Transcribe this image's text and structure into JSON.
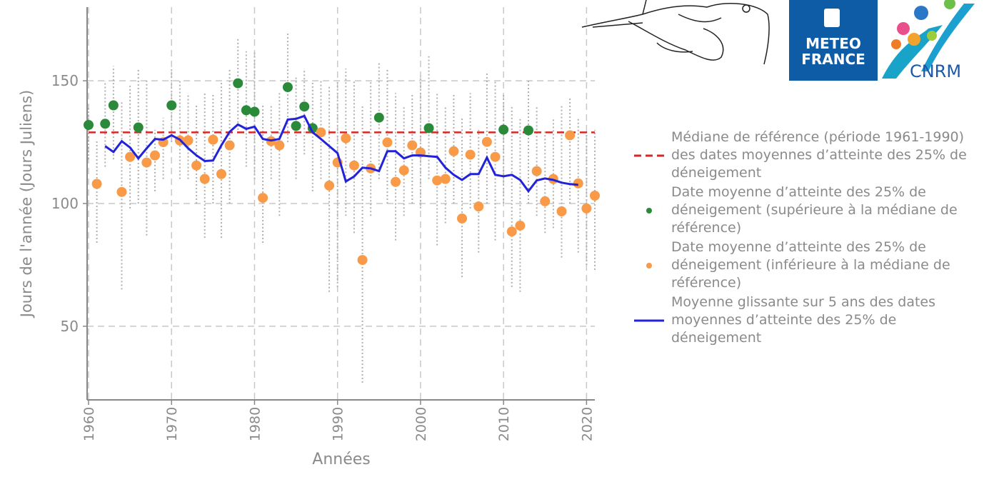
{
  "chart_data": {
    "type": "scatter",
    "xlabel": "Années",
    "ylabel": "Jours de l'année (Jours Juliens)",
    "xlim": [
      1960,
      2021
    ],
    "ylim": [
      20,
      180
    ],
    "xticks": [
      1960,
      1970,
      1980,
      1990,
      2000,
      2010,
      2020
    ],
    "yticks": [
      50,
      100,
      150
    ],
    "grid": true,
    "x": [
      1960,
      1961,
      1962,
      1963,
      1964,
      1965,
      1966,
      1967,
      1968,
      1969,
      1970,
      1971,
      1972,
      1973,
      1974,
      1975,
      1976,
      1977,
      1978,
      1979,
      1980,
      1981,
      1982,
      1983,
      1984,
      1985,
      1986,
      1987,
      1988,
      1989,
      1990,
      1991,
      1992,
      1993,
      1994,
      1995,
      1996,
      1997,
      1998,
      1999,
      2000,
      2001,
      2002,
      2003,
      2004,
      2005,
      2006,
      2007,
      2008,
      2009,
      2010,
      2011,
      2012,
      2013,
      2014,
      2015,
      2016,
      2017,
      2018,
      2019,
      2020,
      2021
    ],
    "reference_line": {
      "name": "Médiane de référence (période 1961-1990) des dates moyennes d’atteinte des 25% de déneigement",
      "color": "#d62728",
      "value": 129
    },
    "ranges": {
      "color": "#b0b0b0",
      "low": [
        118,
        84,
        115,
        118,
        65,
        98,
        100,
        87,
        105,
        110,
        125,
        110,
        110,
        100,
        86,
        100,
        86,
        100,
        130,
        115,
        110,
        84,
        110,
        95,
        125,
        110,
        120,
        105,
        110,
        64,
        66,
        95,
        88,
        27,
        95,
        110,
        100,
        85,
        95,
        100,
        98,
        110,
        83,
        92,
        100,
        70,
        98,
        80,
        100,
        85,
        100,
        66,
        64,
        100,
        95,
        88,
        90,
        78,
        100,
        80,
        75,
        73
      ],
      "high": [
        140,
        126,
        150,
        156,
        142,
        148,
        155,
        150,
        130,
        135,
        155,
        150,
        145,
        140,
        145,
        145,
        150,
        155,
        167,
        162,
        162,
        140,
        140,
        145,
        170,
        152,
        155,
        150,
        150,
        148,
        150,
        155,
        150,
        140,
        150,
        158,
        155,
        145,
        140,
        145,
        152,
        160,
        145,
        140,
        145,
        135,
        145,
        130,
        153,
        150,
        145,
        140,
        135,
        150,
        140,
        130,
        135,
        140,
        143,
        135,
        130,
        130
      ]
    },
    "series": [
      {
        "name": "Date moyenne d’atteinte des 25% de déneigement (supérieure à la médiane de référence)",
        "color": "#2a8a3a",
        "mode": "markers",
        "values": [
          132,
          null,
          132.5,
          140,
          null,
          null,
          131,
          null,
          null,
          null,
          140,
          null,
          null,
          null,
          null,
          null,
          null,
          null,
          149,
          138,
          137.4,
          null,
          null,
          null,
          147.4,
          131.6,
          139.5,
          130.7,
          null,
          null,
          null,
          null,
          null,
          null,
          null,
          135,
          null,
          null,
          null,
          null,
          null,
          130.7,
          null,
          null,
          null,
          null,
          null,
          null,
          null,
          null,
          130.1,
          null,
          null,
          129.8,
          null,
          null,
          null,
          null,
          null,
          null,
          null,
          null
        ]
      },
      {
        "name": "Date moyenne d’atteinte des 25% de déneigement (inférieure à la médiane de référence)",
        "color": "#f89a48",
        "mode": "markers",
        "values": [
          null,
          108,
          null,
          null,
          104.7,
          119,
          null,
          116.7,
          119.6,
          125,
          null,
          125.7,
          125.7,
          115.5,
          110,
          126,
          112,
          123.7,
          null,
          null,
          null,
          102.3,
          125.4,
          123.7,
          null,
          null,
          null,
          null,
          129,
          107.3,
          116.7,
          126.6,
          115.5,
          77,
          114.3,
          null,
          124.9,
          108.8,
          113.5,
          123.7,
          120.8,
          null,
          109.4,
          110,
          121.3,
          93.9,
          119.9,
          98.8,
          125.1,
          119,
          null,
          88.6,
          91,
          null,
          113.2,
          100.9,
          110,
          96.8,
          127.8,
          108.2,
          98,
          103.2
        ]
      },
      {
        "name": "Moyenne glissante sur 5 ans des dates moyennes d’atteinte des 25% de déneigement",
        "color": "#2222d8",
        "mode": "line",
        "values": [
          null,
          null,
          123.4,
          121,
          125.4,
          122.8,
          118.4,
          122.5,
          126.3,
          126,
          127.8,
          126,
          122.5,
          119.6,
          117.3,
          117.5,
          123.7,
          129.2,
          132.2,
          130.4,
          131.3,
          126.3,
          125.7,
          126.3,
          134.2,
          134.5,
          135.7,
          129,
          126.3,
          123.4,
          120.5,
          109,
          111,
          114.6,
          114.3,
          113.2,
          121.3,
          121.3,
          118.4,
          119.6,
          119.6,
          119.3,
          119,
          114.6,
          111.7,
          109.6,
          112,
          112,
          118.7,
          111.7,
          111.1,
          111.7,
          109.6,
          105,
          109.4,
          110.2,
          109.6,
          108.5,
          107.9,
          107.6,
          null,
          null
        ]
      }
    ]
  },
  "logos": {
    "meteo_france": [
      "METEO",
      "FRANCE"
    ],
    "cnrm": "CNRM"
  }
}
